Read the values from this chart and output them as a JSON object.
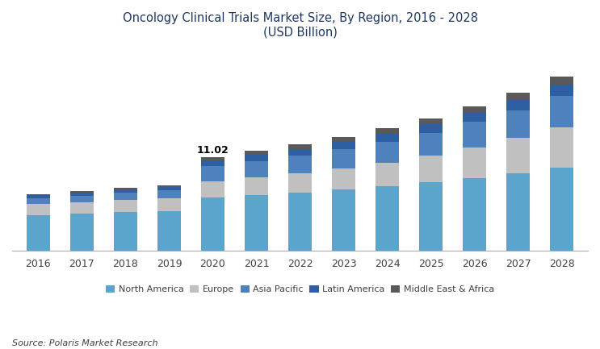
{
  "title_line1": "Oncology Clinical Trials Market Size, By Region, 2016 - 2028",
  "title_line2": "(USD Billion)",
  "years": [
    2016,
    2017,
    2018,
    2019,
    2020,
    2021,
    2022,
    2023,
    2024,
    2025,
    2026,
    2027,
    2028
  ],
  "annotation_year": 2020,
  "annotation_text": "11.02",
  "north_america": [
    4.2,
    4.35,
    4.5,
    4.65,
    6.28,
    6.55,
    6.85,
    7.2,
    7.6,
    8.1,
    8.55,
    9.1,
    9.75
  ],
  "europe": [
    1.3,
    1.38,
    1.46,
    1.55,
    1.88,
    2.05,
    2.25,
    2.5,
    2.75,
    3.1,
    3.6,
    4.15,
    4.8
  ],
  "asia_pacific": [
    0.7,
    0.75,
    0.82,
    0.9,
    1.76,
    1.95,
    2.1,
    2.3,
    2.5,
    2.7,
    3.0,
    3.3,
    3.65
  ],
  "latin_america": [
    0.3,
    0.32,
    0.35,
    0.38,
    0.66,
    0.72,
    0.78,
    0.85,
    0.92,
    1.0,
    1.1,
    1.22,
    1.35
  ],
  "middle_east": [
    0.18,
    0.2,
    0.22,
    0.24,
    0.44,
    0.48,
    0.52,
    0.57,
    0.62,
    0.68,
    0.76,
    0.84,
    0.95
  ],
  "colors": {
    "north_america": "#5BA4CB",
    "europe": "#C0C0C0",
    "asia_pacific": "#4F81BD",
    "latin_america": "#2E5FA3",
    "middle_east": "#595959"
  },
  "legend_labels": [
    "North America",
    "Europe",
    "Asia Pacific",
    "Latin America",
    "Middle East & Africa"
  ],
  "source_text": "Source: Polaris Market Research",
  "title_color": "#1F3864",
  "annotation_fontsize": 9,
  "bar_width": 0.55
}
